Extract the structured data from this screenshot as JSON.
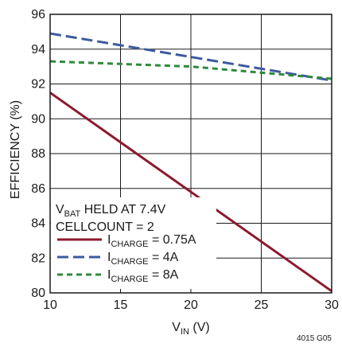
{
  "chart_data": {
    "type": "line",
    "figure_id": "4015 G05",
    "xlabel": {
      "main": "V",
      "sub": "IN",
      "unit": " (V)"
    },
    "ylabel": "EFFICIENCY (%)",
    "xlim": [
      10,
      30
    ],
    "ylim": [
      80,
      96
    ],
    "xticks": [
      10,
      15,
      20,
      25,
      30
    ],
    "yticks": [
      80,
      82,
      84,
      86,
      88,
      90,
      92,
      94,
      96
    ],
    "grid": true,
    "annotation": {
      "line1": {
        "main": "V",
        "sub": "BAT",
        "rest": " HELD AT 7.4V"
      },
      "line2": "CELLCOUNT = 2"
    },
    "legend_position": "bottom-left",
    "series": [
      {
        "legend_main": "I",
        "legend_sub": "CHARGE",
        "legend_rest": " = 0.75A",
        "color": "#8b1a2e",
        "style": "solid",
        "x": [
          10,
          30
        ],
        "y": [
          91.5,
          80.1
        ]
      },
      {
        "legend_main": "I",
        "legend_sub": "CHARGE",
        "legend_rest": " = 4A",
        "color": "#3d5aa0",
        "style": "dashed",
        "x": [
          10,
          30
        ],
        "y": [
          94.9,
          92.2
        ]
      },
      {
        "legend_main": "I",
        "legend_sub": "CHARGE",
        "legend_rest": " = 8A",
        "color": "#2f8a3c",
        "style": "dotted",
        "x": [
          10,
          20,
          30
        ],
        "y": [
          93.3,
          93.0,
          92.3
        ]
      }
    ]
  }
}
